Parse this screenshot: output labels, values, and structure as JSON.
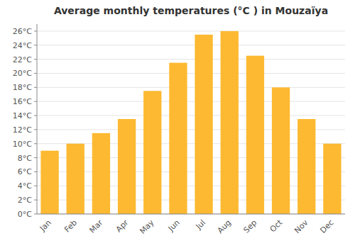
{
  "chart_data": {
    "type": "bar",
    "title": "Average monthly temperatures (°C ) in Mouzaïya",
    "categories": [
      "Jan",
      "Feb",
      "Mar",
      "Apr",
      "May",
      "Jun",
      "Jul",
      "Aug",
      "Sep",
      "Oct",
      "Nov",
      "Dec"
    ],
    "values": [
      9.0,
      10.0,
      11.5,
      13.5,
      17.5,
      21.5,
      25.5,
      26.0,
      22.5,
      18.0,
      13.5,
      10.0
    ],
    "color": "#FDB931",
    "ylim": [
      0,
      27
    ],
    "yticks": [
      {
        "value": 0,
        "label": "0°C"
      },
      {
        "value": 2,
        "label": "2°C"
      },
      {
        "value": 4,
        "label": "4°C"
      },
      {
        "value": 6,
        "label": "6°C"
      },
      {
        "value": 8,
        "label": "8°C"
      },
      {
        "value": 10,
        "label": "10°C"
      },
      {
        "value": 12,
        "label": "12°C"
      },
      {
        "value": 14,
        "label": "14°C"
      },
      {
        "value": 16,
        "label": "16°C"
      },
      {
        "value": 18,
        "label": "18°C"
      },
      {
        "value": 20,
        "label": "20°C"
      },
      {
        "value": 22,
        "label": "22°C"
      },
      {
        "value": 24,
        "label": "24°C"
      },
      {
        "value": 26,
        "label": "26°C"
      }
    ],
    "grid": true
  }
}
